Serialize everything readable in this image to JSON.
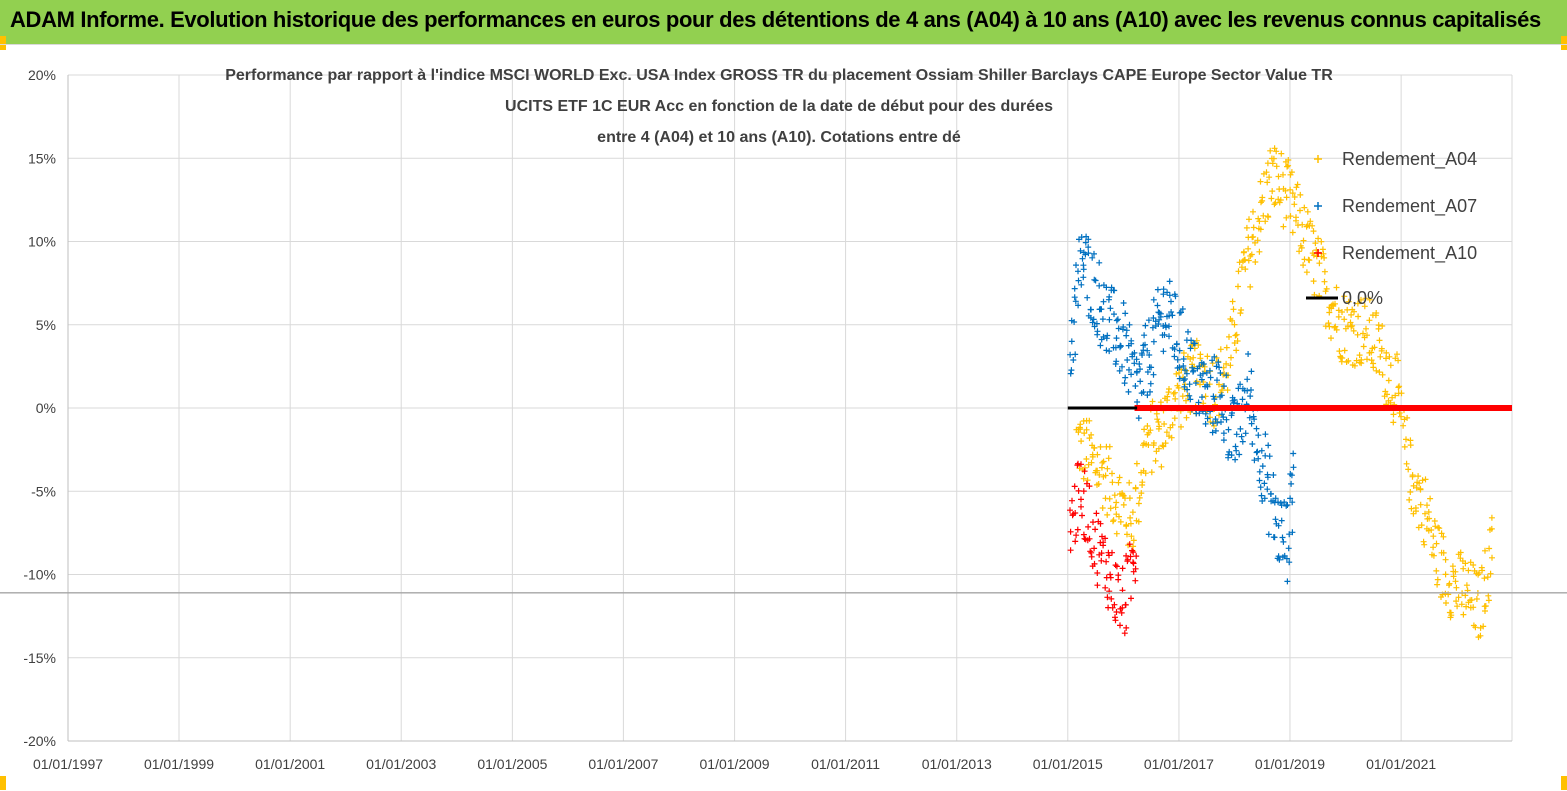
{
  "header": {
    "title": "ADAM Informe. Evolution historique des performances en euros pour des détentions de 4 ans (A04) à 10 ans (A10) avec les revenus connus capitalisés"
  },
  "chart_data": {
    "type": "scatter",
    "title_lines": [
      "Performance par rapport à l'indice MSCI WORLD  Exc. USA Index GROSS TR  du placement Ossiam Shiller Barclays CAPE Europe Sector Value TR",
      "UCITS ETF 1C EUR Acc en fonction de la date de début pour des durées",
      "entre 4 (A04) et 10 ans (A10). Cotations entre dé"
    ],
    "xlabel": "",
    "ylabel": "",
    "x_tick_labels": [
      "01/01/1997",
      "01/01/1999",
      "01/01/2001",
      "01/01/2003",
      "01/01/2005",
      "01/01/2007",
      "01/01/2009",
      "01/01/2011",
      "01/01/2013",
      "01/01/2015",
      "01/01/2017",
      "01/01/2019",
      "01/01/2021"
    ],
    "xlim": [
      "01/01/1997",
      "31/12/2022"
    ],
    "y_tick_labels": [
      "20%",
      "15%",
      "10%",
      "5%",
      "0%",
      "-5%",
      "-10%",
      "-15%",
      "-20%"
    ],
    "ylim": [
      -0.2,
      0.2
    ],
    "y_gridlines": true,
    "x_gridlines": true,
    "legend_position": "top-right",
    "series": [
      {
        "name": "Rendement_A04",
        "marker": "+",
        "color": "#ffc000",
        "trace": [
          [
            "2015-03-01",
            -0.02
          ],
          [
            "2015-06-01",
            -0.03
          ],
          [
            "2015-09-01",
            -0.04
          ],
          [
            "2015-12-01",
            -0.055
          ],
          [
            "2016-03-01",
            -0.07
          ],
          [
            "2016-06-01",
            -0.02
          ],
          [
            "2016-09-01",
            -0.015
          ],
          [
            "2016-12-01",
            0.005
          ],
          [
            "2017-03-01",
            0.015
          ],
          [
            "2017-06-01",
            0.02
          ],
          [
            "2017-09-01",
            0.01
          ],
          [
            "2017-12-01",
            0.03
          ],
          [
            "2018-03-01",
            0.08
          ],
          [
            "2018-06-01",
            0.11
          ],
          [
            "2018-09-01",
            0.14
          ],
          [
            "2018-12-01",
            0.13
          ],
          [
            "2019-12-01",
            0.05
          ],
          [
            "2020-06-01",
            0.045
          ],
          [
            "2020-09-01",
            0.03
          ],
          [
            "2020-12-01",
            0.01
          ],
          [
            "2021-03-01",
            -0.04
          ],
          [
            "2021-06-01",
            -0.06
          ],
          [
            "2021-09-01",
            -0.09
          ],
          [
            "2021-12-01",
            -0.105
          ],
          [
            "2022-03-01",
            -0.11
          ],
          [
            "2022-06-01",
            -0.12
          ],
          [
            "2022-09-01",
            -0.08
          ]
        ]
      },
      {
        "name": "Rendement_A07",
        "marker": "+",
        "color": "#0070c0",
        "trace": [
          [
            "2015-01-15",
            0.03
          ],
          [
            "2015-04-01",
            0.09
          ],
          [
            "2015-07-01",
            0.07
          ],
          [
            "2015-10-01",
            0.05
          ],
          [
            "2016-01-01",
            0.04
          ],
          [
            "2016-04-01",
            0.01
          ],
          [
            "2016-07-01",
            0.035
          ],
          [
            "2016-10-01",
            0.06
          ],
          [
            "2017-01-01",
            0.04
          ],
          [
            "2017-04-01",
            0.02
          ],
          [
            "2017-07-01",
            0.005
          ],
          [
            "2017-10-01",
            0.01
          ],
          [
            "2018-01-01",
            -0.02
          ],
          [
            "2018-04-01",
            0.01
          ],
          [
            "2018-07-01",
            -0.03
          ],
          [
            "2018-10-01",
            -0.07
          ],
          [
            "2018-12-15",
            -0.08
          ],
          [
            "2019-02-01",
            -0.03
          ]
        ]
      },
      {
        "name": "Rendement_A10",
        "marker": "+",
        "color": "#ff0000",
        "trace": [
          [
            "2015-01-15",
            -0.07
          ],
          [
            "2015-04-01",
            -0.05
          ],
          [
            "2015-07-01",
            -0.08
          ],
          [
            "2015-10-01",
            -0.1
          ],
          [
            "2016-01-01",
            -0.12
          ],
          [
            "2016-04-01",
            -0.08
          ],
          [
            "2016-06-01",
            0.0
          ],
          [
            "2022-12-31",
            0.0
          ]
        ]
      },
      {
        "name": "0,0%",
        "marker": "line",
        "color": "#000000",
        "values": [
          [
            "2015-01-01",
            0.0
          ],
          [
            "2016-04-01",
            0.0
          ]
        ]
      }
    ]
  }
}
